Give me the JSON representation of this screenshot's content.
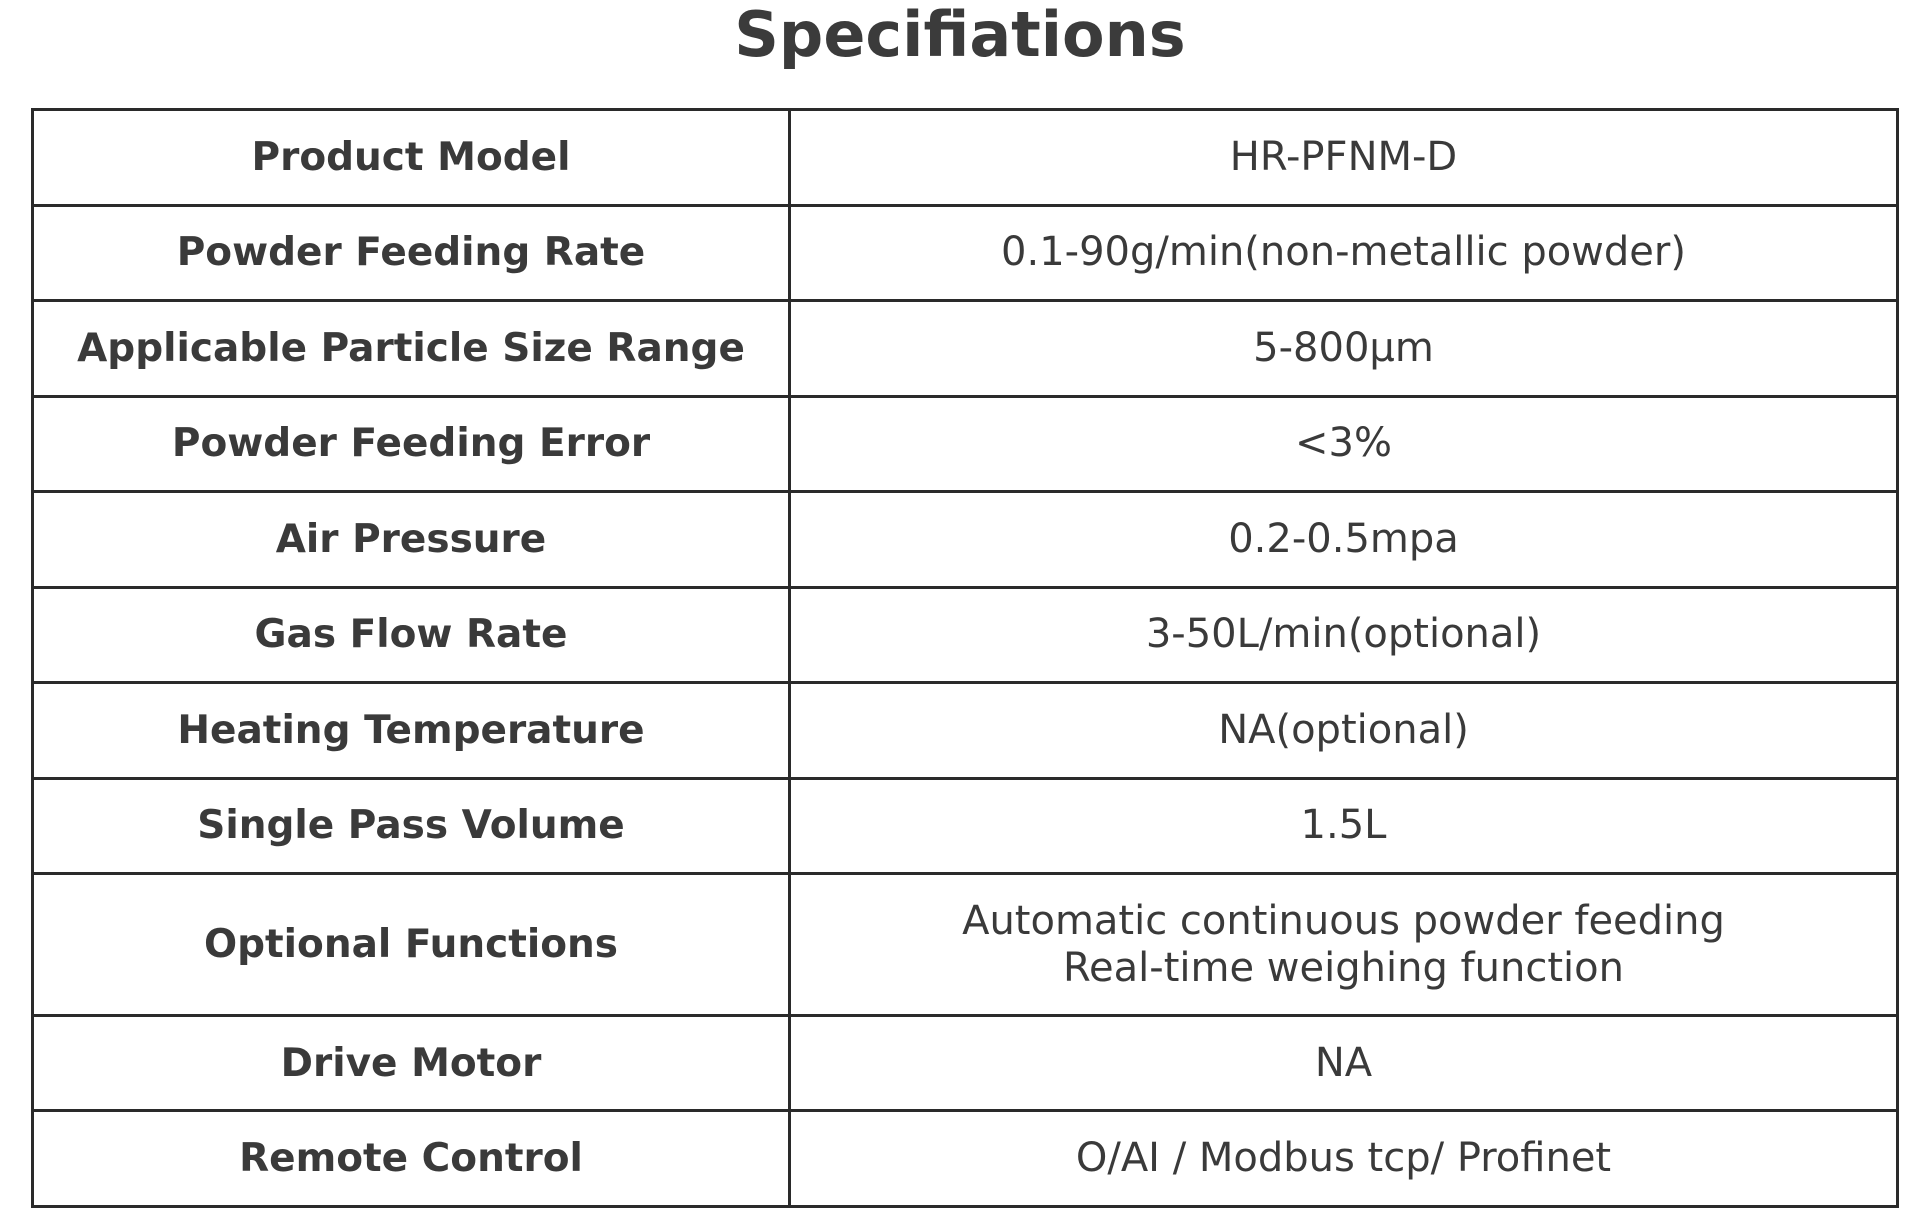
{
  "title": "Specifiations",
  "rows": [
    {
      "label": "Product Model",
      "value": [
        "HR-PFNM-D"
      ]
    },
    {
      "label": "Powder Feeding Rate",
      "value": [
        "0.1-90g/min(non-metallic powder)"
      ]
    },
    {
      "label": "Applicable Particle Size Range",
      "value": [
        "5-800μm"
      ]
    },
    {
      "label": "Powder Feeding Error",
      "value": [
        "<3%"
      ]
    },
    {
      "label": "Air Pressure",
      "value": [
        "0.2-0.5mpa"
      ]
    },
    {
      "label": "Gas Flow Rate",
      "value": [
        "3-50L/min(optional)"
      ]
    },
    {
      "label": "Heating Temperature",
      "value": [
        "NA(optional)"
      ]
    },
    {
      "label": "Single Pass Volume",
      "value": [
        "1.5L"
      ]
    },
    {
      "label": "Optional Functions",
      "value": [
        "Automatic continuous powder feeding",
        "Real-time weighing function"
      ]
    },
    {
      "label": "Drive Motor",
      "value": [
        "NA"
      ]
    },
    {
      "label": "Remote Control",
      "value": [
        "O/AI / Modbus tcp/ Profinet"
      ]
    }
  ]
}
